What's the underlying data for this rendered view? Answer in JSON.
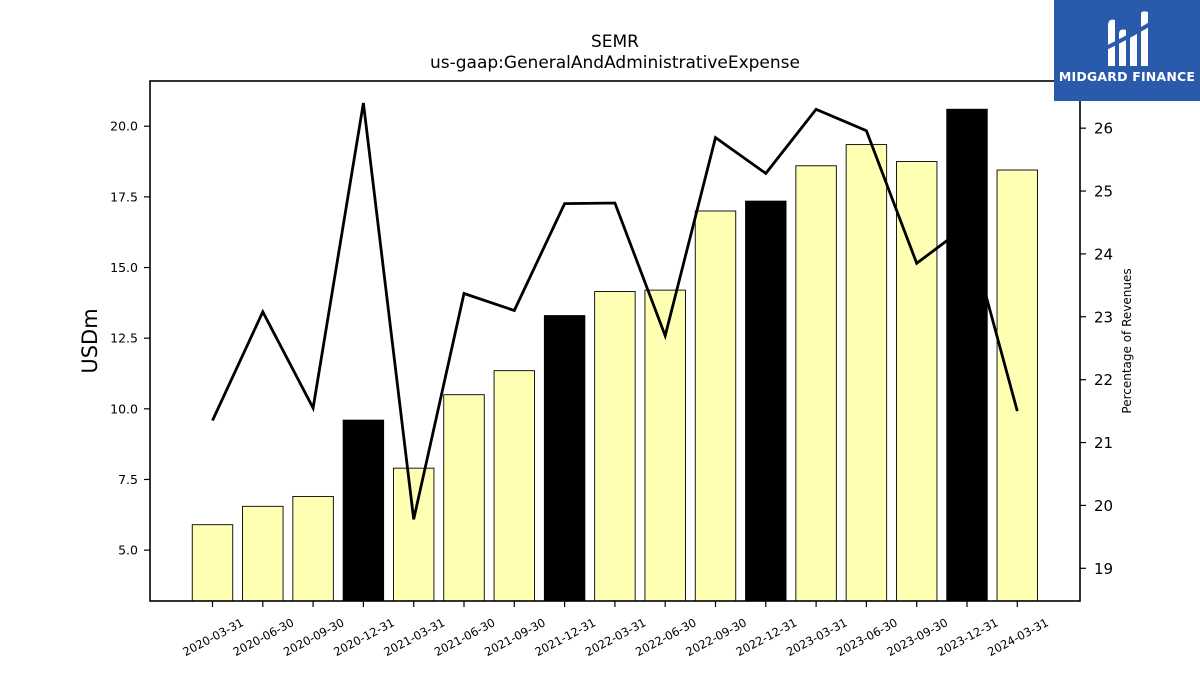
{
  "title": "SEMR",
  "subtitle": "us-gaap:GeneralAndAdministrativeExpense",
  "logo": {
    "text": "MIDGARD FINANCE",
    "color": "#2a5aab",
    "icon": "midgard-m-logo-icon"
  },
  "chart_data": {
    "type": "bar",
    "ylabel": "USDm",
    "y2label": "Percentage of Revenues",
    "ylim": [
      3.2,
      21.6
    ],
    "y2lim": [
      18.48,
      26.75
    ],
    "yticks": [
      "5.0",
      "7.5",
      "10.0",
      "12.5",
      "15.0",
      "17.5",
      "20.0"
    ],
    "y2ticks": [
      "19",
      "20",
      "21",
      "22",
      "23",
      "24",
      "25",
      "26"
    ],
    "categories": [
      "2020-03-31",
      "2020-06-30",
      "2020-09-30",
      "2020-12-31",
      "2021-03-31",
      "2021-06-30",
      "2021-09-30",
      "2021-12-31",
      "2022-03-31",
      "2022-06-30",
      "2022-09-30",
      "2022-12-31",
      "2023-03-31",
      "2023-06-30",
      "2023-09-30",
      "2023-12-31",
      "2024-03-31"
    ],
    "series": [
      {
        "type": "bar",
        "axis": "left",
        "values": [
          5.9,
          6.55,
          6.9,
          9.6,
          7.9,
          10.5,
          11.35,
          13.3,
          14.15,
          14.2,
          17.0,
          17.35,
          18.6,
          19.35,
          18.75,
          20.6,
          18.45
        ],
        "colors": [
          "#ffffb3",
          "#ffffb3",
          "#ffffb3",
          "#000000",
          "#ffffb3",
          "#ffffb3",
          "#ffffb3",
          "#000000",
          "#ffffb3",
          "#ffffb3",
          "#ffffb3",
          "#000000",
          "#ffffb3",
          "#ffffb3",
          "#ffffb3",
          "#000000",
          "#ffffb3"
        ]
      },
      {
        "type": "line",
        "axis": "right",
        "color": "#000000",
        "values": [
          21.35,
          23.08,
          21.55,
          26.4,
          19.78,
          23.37,
          23.1,
          24.8,
          24.81,
          22.7,
          25.85,
          25.28,
          26.3,
          25.96,
          23.85,
          24.45,
          21.5
        ]
      }
    ]
  }
}
